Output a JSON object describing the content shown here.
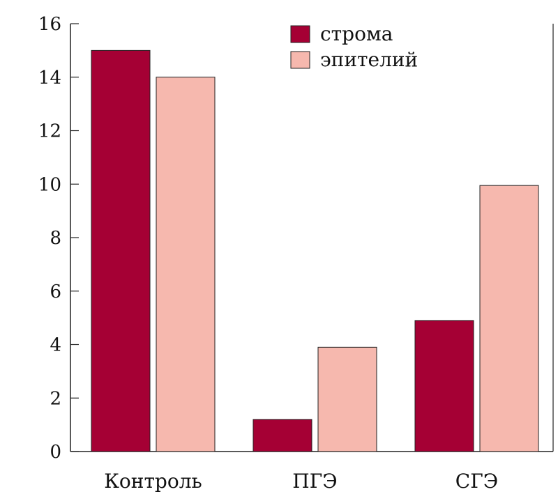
{
  "chart_data": {
    "type": "bar",
    "title": "",
    "xlabel": "",
    "ylabel": "",
    "categories": [
      "Контроль",
      "ПГЭ",
      "СГЭ"
    ],
    "series": [
      {
        "name": "строма",
        "values": [
          15,
          1.2,
          4.9
        ],
        "color": "#A50034"
      },
      {
        "name": "эпителий",
        "values": [
          14,
          3.9,
          9.95
        ],
        "color": "#F6B8AE"
      }
    ],
    "ylim": [
      0,
      16
    ],
    "yticks": [
      "0",
      "2",
      "4",
      "6",
      "8",
      "10",
      "12",
      "14",
      "16"
    ],
    "grid": false,
    "legend_position": "top-center"
  }
}
